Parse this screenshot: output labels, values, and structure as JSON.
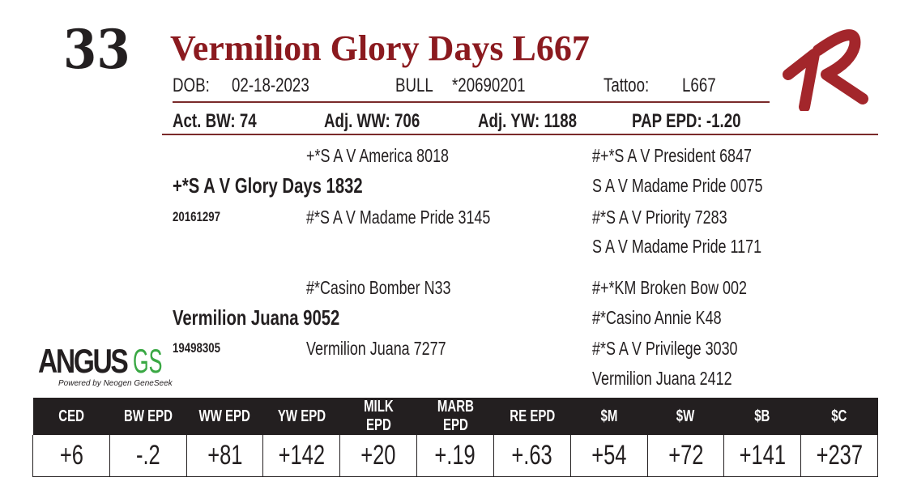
{
  "lot_number": "33",
  "title": "Vermilion Glory Days L667",
  "dob_label": "DOB:",
  "dob": "02-18-2023",
  "sex": "BULL",
  "registration": "*20690201",
  "tattoo_label": "Tattoo:",
  "tattoo": "L667",
  "act_bw": "Act. BW: 74",
  "adj_ww": "Adj. WW: 706",
  "adj_yw": "Adj. YW: 1188",
  "pap_epd": "PAP EPD: -1.20",
  "pedigree": {
    "sire": "+*S A V Glory Days 1832",
    "sire_reg": "20161297",
    "sire_sire": "+*S A V America 8018",
    "sire_dam": "#*S A V Madame Pride 3145",
    "sss": "#+*S A V President 6847",
    "ssd": "S A V Madame Pride 0075",
    "sds": "#*S A V Priority 7283",
    "sdd": "S A V Madame Pride 1171",
    "dam": "Vermilion Juana 9052",
    "dam_reg": "19498305",
    "dam_sire": "#*Casino Bomber N33",
    "dam_dam": "Vermilion Juana 7277",
    "dss": "#+*KM Broken Bow 002",
    "dsd": "#*Casino Annie K48",
    "dds": "#*S A V Privilege 3030",
    "ddd": "Vermilion Juana 2412"
  },
  "logo": {
    "text": "ANGUS",
    "suffix": "GS",
    "tagline": "Powered by Neogen GeneSeek"
  },
  "brand_mark": "VR",
  "epd_headers": [
    "CED",
    "BW EPD",
    "WW EPD",
    "YW EPD",
    "MILK EPD",
    "MARB EPD",
    "RE EPD",
    "$M",
    "$W",
    "$B",
    "$C"
  ],
  "epd_values": [
    "+6",
    "-.2",
    "+81",
    "+142",
    "+20",
    "+.19",
    "+.63",
    "+54",
    "+72",
    "+141",
    "+237"
  ],
  "colors": {
    "title": "#8b1a1f",
    "header_bg": "#231f20",
    "logo_accent": "#3aa844"
  }
}
